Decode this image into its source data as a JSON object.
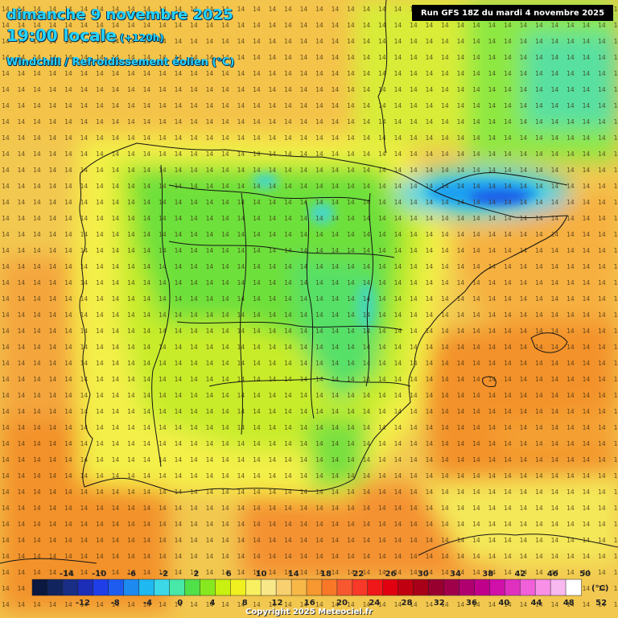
{
  "header": {
    "date_line": "dimanche 9 novembre 2025",
    "time_line": "19:00 locale",
    "time_offset": "(+120h)",
    "subtitle": "Windchill / Refroidissement éolien (°C)"
  },
  "run_banner": "Run GFS 18Z du mardi 4 novembre 2025",
  "copyright": "Copyright 2025 Meteociel.fr",
  "legend": {
    "unit": "(°C)",
    "top_labels": [
      "-14",
      "-10",
      "-6",
      "-2",
      "2",
      "6",
      "10",
      "14",
      "18",
      "22",
      "26",
      "30",
      "34",
      "38",
      "42",
      "46",
      "50"
    ],
    "bottom_labels": [
      "-12",
      "-8",
      "-4",
      "0",
      "4",
      "8",
      "12",
      "16",
      "20",
      "24",
      "28",
      "32",
      "36",
      "40",
      "44",
      "48",
      "52"
    ],
    "colors": [
      "#0b1840",
      "#12245e",
      "#1a2e86",
      "#1c2eb8",
      "#1f3ee8",
      "#1e5cf0",
      "#1d8af0",
      "#1fb8f0",
      "#3dd8e8",
      "#48e8a8",
      "#50e048",
      "#88e820",
      "#c8f010",
      "#f0f020",
      "#f8f060",
      "#f8e888",
      "#f8d070",
      "#f8b848",
      "#f89830",
      "#f87828",
      "#f85830",
      "#f83828",
      "#f01818",
      "#e00010",
      "#c00010",
      "#a80018",
      "#980030",
      "#a0004a",
      "#b00070",
      "#c0008a",
      "#d010a8",
      "#e030c0",
      "#f060d8",
      "#f890e8",
      "#f8b8f0",
      "#ffffff"
    ]
  },
  "icons": [
    "map-of-iberia"
  ]
}
